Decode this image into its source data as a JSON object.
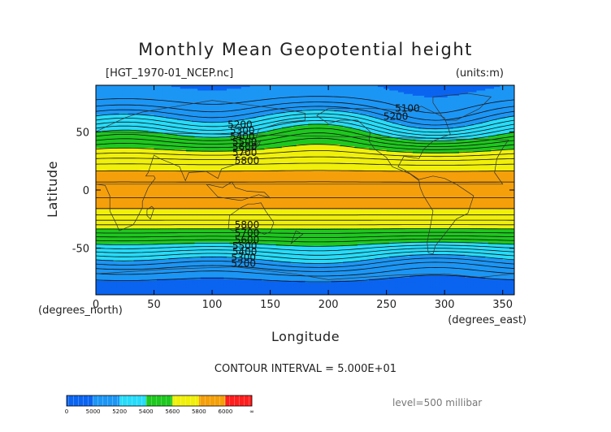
{
  "header": {
    "title": "Monthly Mean Geopotential height",
    "file_label": "[HGT_1970-01_NCEP.nc]",
    "units_label": "(units:m)"
  },
  "axes": {
    "xlabel": "Longitude",
    "ylabel": "Latitude",
    "x_units": "(degrees_east)",
    "y_units": "(degrees_north)"
  },
  "contour_interval_text": "CONTOUR INTERVAL = 5.000E+01",
  "level_text": "level=500 millibar",
  "colors": {
    "b0": "#0a64f0",
    "b1": "#1c96f5",
    "b2": "#27dcfa",
    "b3": "#1ec81e",
    "b4": "#f0f00a",
    "b5": "#f5a00a",
    "b6": "#ff1e1e"
  },
  "chart_data": {
    "type": "heatmap",
    "x_ticks": [
      0,
      50,
      100,
      150,
      200,
      250,
      300,
      350
    ],
    "y_ticks": [
      50,
      0,
      -50
    ],
    "xlim": [
      0,
      360
    ],
    "ylim": [
      -90,
      90
    ],
    "contour_interval": 50,
    "contour_labels": [
      {
        "value": "5100",
        "lon": 268,
        "lat": 70
      },
      {
        "value": "5200",
        "lon": 258,
        "lat": 63
      },
      {
        "value": "5200",
        "lon": 124,
        "lat": 56
      },
      {
        "value": "5300",
        "lon": 126,
        "lat": 51
      },
      {
        "value": "5400",
        "lon": 126,
        "lat": 46
      },
      {
        "value": "5500",
        "lon": 128,
        "lat": 41
      },
      {
        "value": "5600",
        "lon": 128,
        "lat": 37
      },
      {
        "value": "5700",
        "lon": 128,
        "lat": 32
      },
      {
        "value": "5800",
        "lon": 130,
        "lat": 25
      },
      {
        "value": "5800",
        "lon": 130,
        "lat": -30
      },
      {
        "value": "5700",
        "lon": 130,
        "lat": -37
      },
      {
        "value": "5600",
        "lon": 130,
        "lat": -43
      },
      {
        "value": "5500",
        "lon": 128,
        "lat": -48
      },
      {
        "value": "5400",
        "lon": 128,
        "lat": -53
      },
      {
        "value": "5300",
        "lon": 127,
        "lat": -58
      },
      {
        "value": "5200",
        "lon": 127,
        "lat": -63
      }
    ],
    "colorbar": {
      "labels": [
        "0",
        "5000",
        "5200",
        "5400",
        "5600",
        "5800",
        "6000",
        "∞"
      ],
      "bins": [
        {
          "from": 0,
          "to": 5000,
          "color_key": "b0"
        },
        {
          "from": 5000,
          "to": 5200,
          "color_key": "b1"
        },
        {
          "from": 5200,
          "to": 5400,
          "color_key": "b2"
        },
        {
          "from": 5400,
          "to": 5600,
          "color_key": "b3"
        },
        {
          "from": 5600,
          "to": 5800,
          "color_key": "b4"
        },
        {
          "from": 5800,
          "to": 6000,
          "color_key": "b5"
        },
        {
          "from": 6000,
          "to": "∞",
          "color_key": "b6"
        }
      ]
    }
  }
}
